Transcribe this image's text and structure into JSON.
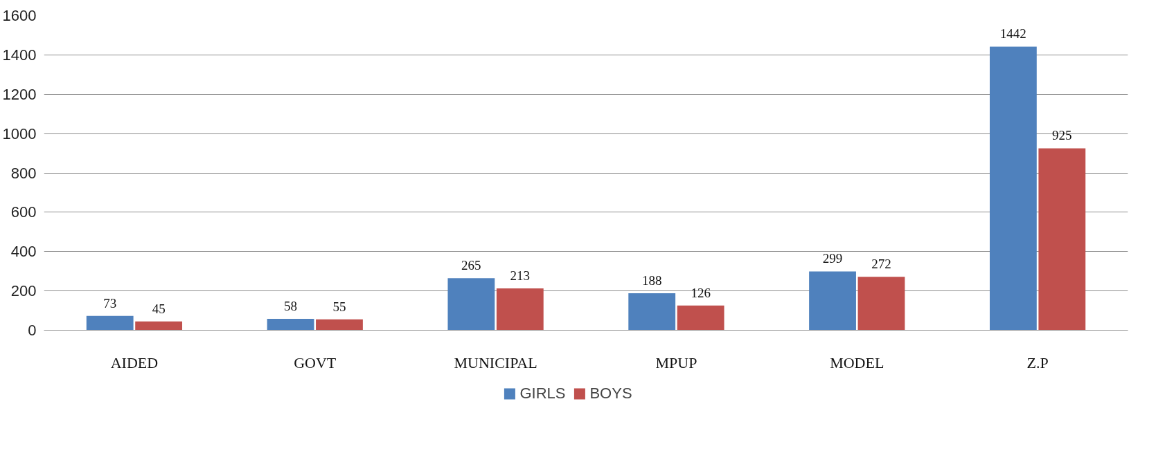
{
  "chart_data": {
    "type": "bar",
    "categories": [
      "AIDED",
      "GOVT",
      "MUNICIPAL",
      "MPUP",
      "MODEL",
      "Z.P"
    ],
    "series": [
      {
        "name": "GIRLS",
        "color": "#4f81bd",
        "values": [
          73,
          58,
          265,
          188,
          299,
          1442
        ]
      },
      {
        "name": "BOYS",
        "color": "#c0504d",
        "values": [
          45,
          55,
          213,
          126,
          272,
          925
        ]
      }
    ],
    "ylim": [
      0,
      1600
    ],
    "yticks": [
      0,
      200,
      400,
      600,
      800,
      1000,
      1200,
      1400,
      1600
    ],
    "grid": "y",
    "legend": "bottom",
    "data_labels": true
  }
}
